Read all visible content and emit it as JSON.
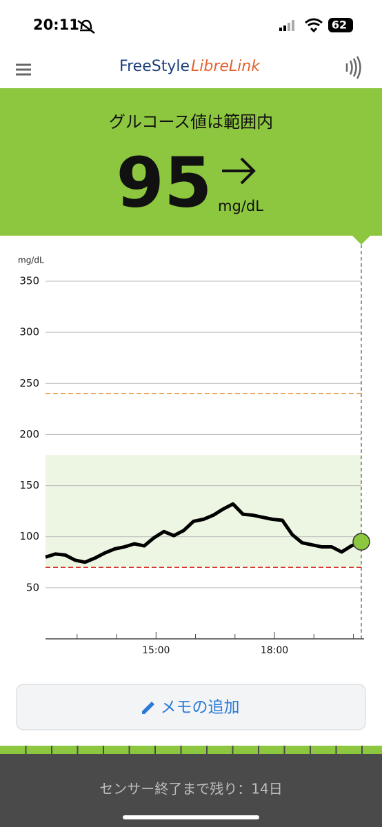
{
  "status_bar": {
    "time": "20:11",
    "battery": "62"
  },
  "header": {
    "brand_a": "FreeStyle",
    "brand_b": "LibreLink"
  },
  "reading": {
    "status": "グルコース値は範囲内",
    "value": 95,
    "unit": "mg/dL"
  },
  "chart_data": {
    "type": "line",
    "y_label": "mg/dL",
    "x": [
      12.2,
      12.45,
      12.7,
      12.95,
      13.2,
      13.45,
      13.7,
      13.95,
      14.2,
      14.45,
      14.7,
      14.95,
      15.2,
      15.45,
      15.7,
      15.95,
      16.2,
      16.45,
      16.7,
      16.95,
      17.2,
      17.45,
      17.7,
      17.95,
      18.2,
      18.45,
      18.7,
      18.95,
      19.2,
      19.45,
      19.7,
      19.95,
      20.2
    ],
    "series": [
      {
        "name": "glucose",
        "color": "#000000",
        "values": [
          80,
          83,
          82,
          77,
          75,
          79,
          84,
          88,
          90,
          93,
          91,
          99,
          105,
          101,
          106,
          115,
          117,
          121,
          127,
          132,
          122,
          121,
          119,
          117,
          116,
          102,
          94,
          92,
          90,
          90,
          85,
          91,
          95
        ]
      }
    ],
    "xlim": [
      12.2,
      20.2
    ],
    "xticks": [
      {
        "value": 15,
        "label": "15:00"
      },
      {
        "value": 18,
        "label": "18:00"
      }
    ],
    "x_minor_ticks": [
      13,
      14,
      16,
      17,
      19,
      20
    ],
    "ylim": [
      0,
      350
    ],
    "yticks": [
      50,
      100,
      150,
      200,
      250,
      300,
      350
    ],
    "grid": true,
    "target_range": [
      70,
      180
    ],
    "high_line": 240,
    "low_line": 70
  },
  "button": {
    "label": "メモの追加"
  },
  "footer": {
    "sensor": "センサー終了まで残り：14日"
  }
}
